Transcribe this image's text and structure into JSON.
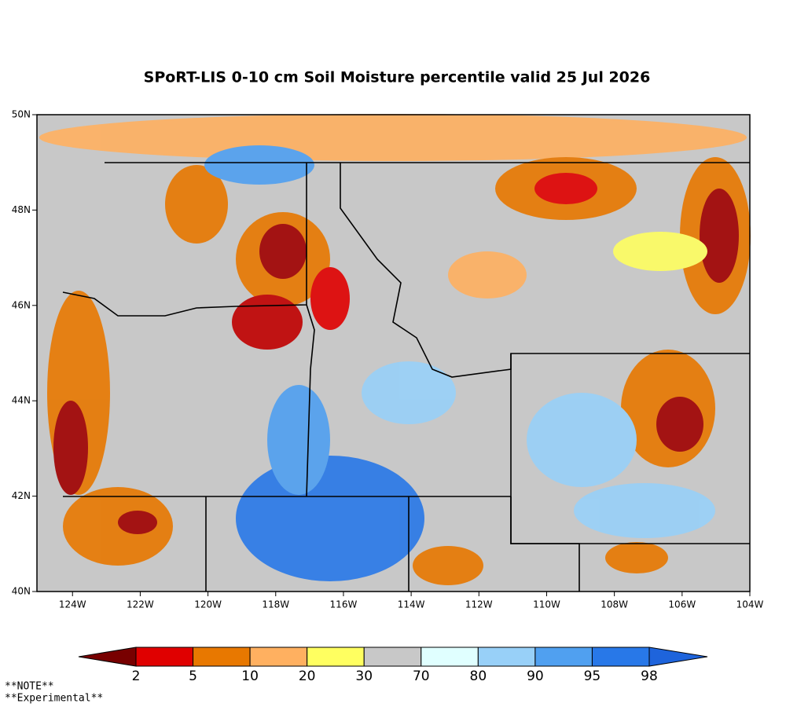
{
  "title": "SPoRT-LIS 0-10 cm Soil Moisture percentile valid 25 Jul 2026",
  "map": {
    "xlim": [
      -125.05,
      -104
    ],
    "ylim": [
      40,
      50
    ],
    "xticks": [
      {
        "value": -124,
        "label": "124W"
      },
      {
        "value": -122,
        "label": "122W"
      },
      {
        "value": -120,
        "label": "120W"
      },
      {
        "value": -118,
        "label": "118W"
      },
      {
        "value": -116,
        "label": "116W"
      },
      {
        "value": -114,
        "label": "114W"
      },
      {
        "value": -112,
        "label": "112W"
      },
      {
        "value": -110,
        "label": "110W"
      },
      {
        "value": -108,
        "label": "108W"
      },
      {
        "value": -106,
        "label": "106W"
      },
      {
        "value": -104,
        "label": "104W"
      }
    ],
    "yticks": [
      {
        "value": 40,
        "label": "40N"
      },
      {
        "value": 42,
        "label": "42N"
      },
      {
        "value": 44,
        "label": "44N"
      },
      {
        "value": 46,
        "label": "46N"
      },
      {
        "value": 48,
        "label": "48N"
      },
      {
        "value": 50,
        "label": "50N"
      }
    ]
  },
  "colorbar": {
    "levels": [
      2,
      5,
      10,
      20,
      30,
      70,
      80,
      90,
      95,
      98
    ],
    "colors": [
      "#780000",
      "#e00000",
      "#e87800",
      "#ffb060",
      "#ffff60",
      "#c8c8c8",
      "#e0ffff",
      "#98d0f8",
      "#50a0f0",
      "#2878e8",
      "#1e64dc"
    ]
  },
  "notes": [
    "**NOTE**",
    "**Experimental**"
  ]
}
